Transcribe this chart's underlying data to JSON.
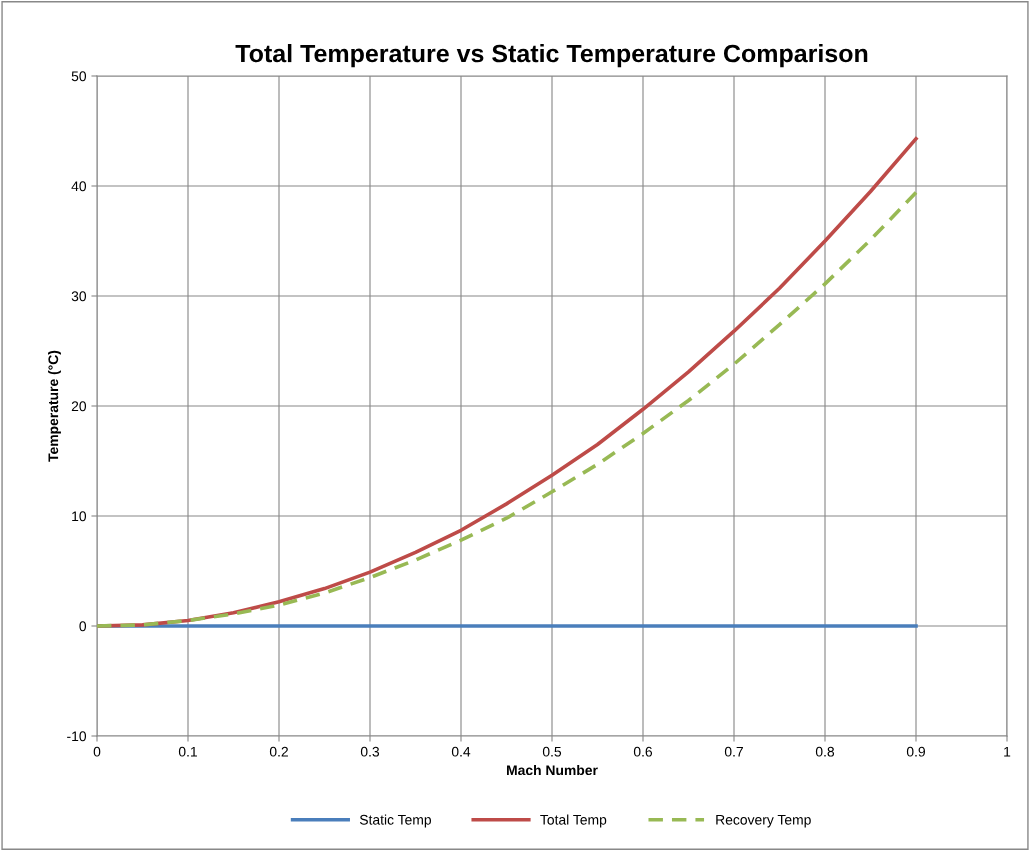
{
  "chart_data": {
    "type": "line",
    "title": "Total Temperature vs Static Temperature Comparison",
    "xlabel": "Mach Number",
    "ylabel": "Temperature (°C)",
    "x": [
      0,
      0.05,
      0.1,
      0.15,
      0.2,
      0.25,
      0.3,
      0.35,
      0.4,
      0.45,
      0.5,
      0.55,
      0.6,
      0.65,
      0.7,
      0.75,
      0.8,
      0.85,
      0.9
    ],
    "series": [
      {
        "name": "Static Temp",
        "color": "#4a7ebb",
        "line_style": "solid",
        "values": [
          0,
          0,
          0,
          0,
          0,
          0,
          0,
          0,
          0,
          0,
          0,
          0,
          0,
          0,
          0,
          0,
          0,
          0,
          0
        ]
      },
      {
        "name": "Total Temp",
        "color": "#be4b48",
        "line_style": "solid",
        "values": [
          0,
          0.1,
          0.5,
          1.2,
          2.2,
          3.4,
          4.9,
          6.7,
          8.7,
          11.1,
          13.7,
          16.5,
          19.7,
          23.1,
          26.8,
          30.7,
          35.0,
          39.5,
          44.3
        ]
      },
      {
        "name": "Recovery Temp",
        "color": "#98b954",
        "line_style": "dashed",
        "values": [
          0,
          0.1,
          0.5,
          1.1,
          1.9,
          3.0,
          4.4,
          6.0,
          7.8,
          9.8,
          12.2,
          14.7,
          17.5,
          20.5,
          23.8,
          27.4,
          31.1,
          35.1,
          39.4
        ]
      }
    ],
    "xlim": [
      0,
      1
    ],
    "xticks": [
      0,
      0.1,
      0.2,
      0.3,
      0.4,
      0.5,
      0.6,
      0.7,
      0.8,
      0.9,
      1
    ],
    "ylim": [
      -10,
      50
    ],
    "yticks": [
      -10,
      0,
      10,
      20,
      30,
      40,
      50
    ],
    "grid": true,
    "legend": "bottom",
    "marker": "none"
  }
}
